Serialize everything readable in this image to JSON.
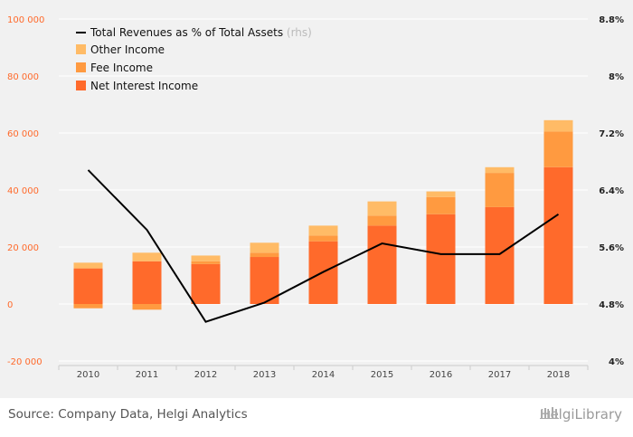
{
  "chart_data": {
    "type": "bar",
    "categories": [
      "2010",
      "2011",
      "2012",
      "2013",
      "2014",
      "2015",
      "2016",
      "2017",
      "2018"
    ],
    "series": [
      {
        "name": "Net Interest Income",
        "kind": "bar",
        "axis": "left",
        "color": "#ff6a2b",
        "values": [
          12500,
          15000,
          14000,
          16500,
          22000,
          27500,
          31500,
          34000,
          48000
        ]
      },
      {
        "name": "Fee Income",
        "kind": "bar",
        "axis": "left",
        "color": "#ff9a40",
        "values": [
          -1500,
          -2000,
          1000,
          1500,
          2000,
          3500,
          6000,
          12000,
          12500
        ],
        "note": "negative parts drawn below zero"
      },
      {
        "name": "Other Income",
        "kind": "bar",
        "axis": "left",
        "color": "#ffbb66",
        "values": [
          2000,
          3000,
          2000,
          3500,
          3500,
          5000,
          2000,
          2000,
          4000
        ]
      },
      {
        "name": "Total Revenues as % of Total Assets",
        "rhs_tag": "(rhs)",
        "kind": "line",
        "axis": "right",
        "color": "#000000",
        "values": [
          6.68,
          5.84,
          4.55,
          4.82,
          5.25,
          5.65,
          5.5,
          5.5,
          6.06
        ]
      }
    ],
    "y_left": {
      "ylim": [
        -20000,
        100000
      ],
      "ticks": [
        -20000,
        0,
        20000,
        40000,
        60000,
        80000,
        100000
      ],
      "tick_labels": [
        "-20 000",
        "0",
        "20 000",
        "40 000",
        "60 000",
        "80 000",
        "100 000"
      ]
    },
    "y_right": {
      "ylim": [
        4,
        8.8
      ],
      "ticks": [
        4,
        4.8,
        5.6,
        6.4,
        7.2,
        8,
        8.8
      ],
      "tick_labels": [
        "4%",
        "4.8%",
        "5.6%",
        "6.4%",
        "7.2%",
        "8%",
        "8.8%"
      ]
    },
    "legend_position": "top-left",
    "grid": "horizontal"
  },
  "source_text": "Source: Company Data, Helgi Analytics",
  "brand_text": "HelgiLibrary",
  "colors": {
    "left_axis": "#ff6a2b",
    "background": "#f1f1f1"
  }
}
